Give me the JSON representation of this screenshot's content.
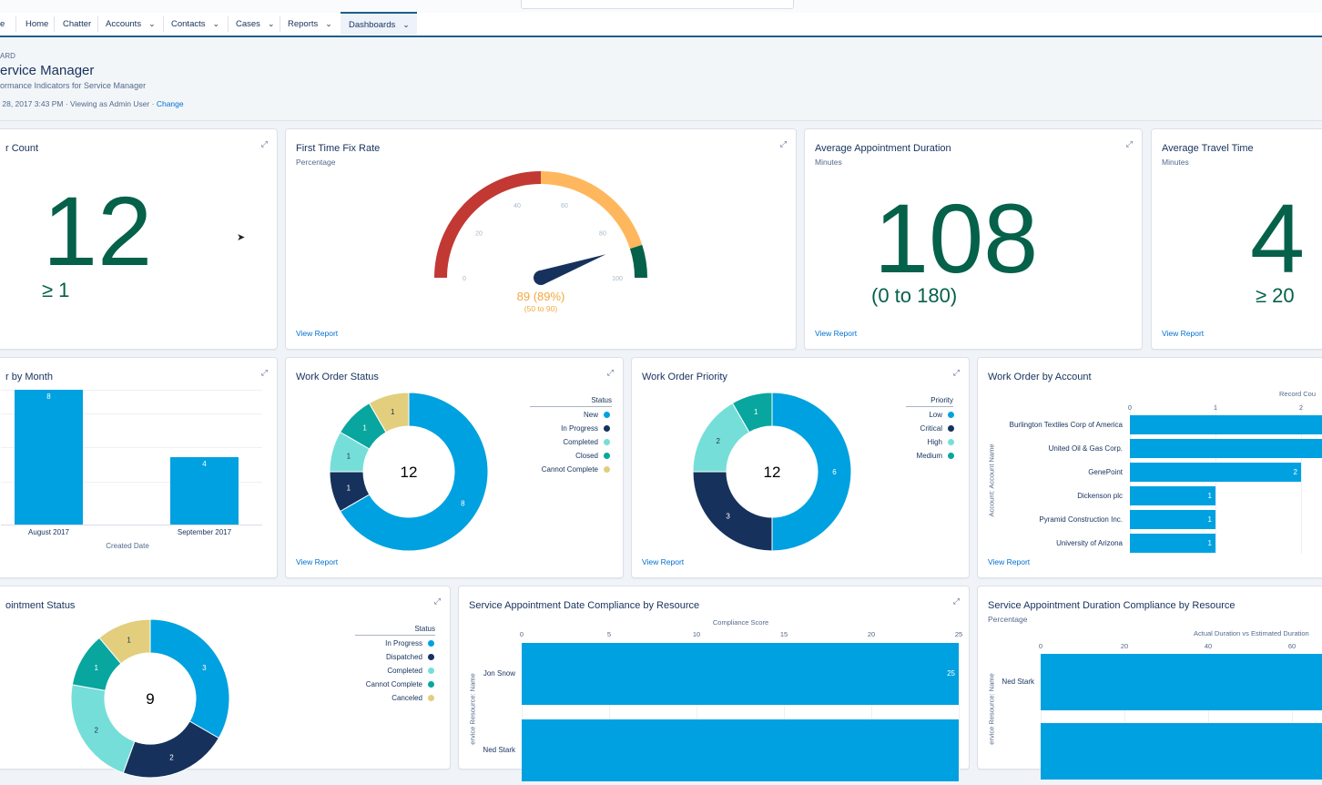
{
  "nav": {
    "tabs": [
      {
        "label": "e",
        "chevron": false,
        "active": false
      },
      {
        "label": "Home",
        "chevron": false,
        "active": false
      },
      {
        "label": "Chatter",
        "chevron": false,
        "active": false
      },
      {
        "label": "Accounts",
        "chevron": true,
        "active": false
      },
      {
        "label": "Contacts",
        "chevron": true,
        "active": false
      },
      {
        "label": "Cases",
        "chevron": true,
        "active": false
      },
      {
        "label": "Reports",
        "chevron": true,
        "active": false
      },
      {
        "label": "Dashboards",
        "chevron": true,
        "active": true
      }
    ]
  },
  "header": {
    "type_label": "ARD",
    "title": "ervice Manager",
    "subtitle": "ormance Indicators for Service Manager",
    "meta_text": " 28, 2017 3:43 PM · Viewing as Admin User · ",
    "change_link": "Change"
  },
  "common": {
    "view_report": "View Report",
    "expand_icon": "expand-icon"
  },
  "cards": {
    "count": {
      "title": "r Count",
      "value": "12",
      "range": "≥ 1"
    },
    "fix_rate": {
      "title": "First Time Fix Rate",
      "subtitle": "Percentage",
      "value_text": "89 (89%)",
      "range_text": "(50 to 90)",
      "value": 89,
      "ticks": [
        "0",
        "20",
        "40",
        "60",
        "80",
        "100"
      ],
      "segments": [
        {
          "from": 0,
          "to": 50,
          "color": "#c23934"
        },
        {
          "from": 50,
          "to": 90,
          "color": "#ffb75d"
        },
        {
          "from": 90,
          "to": 100,
          "color": "#05614a"
        }
      ]
    },
    "duration": {
      "title": "Average Appointment Duration",
      "subtitle": "Minutes",
      "value": "108",
      "range": "(0 to 180)"
    },
    "travel": {
      "title": "Average Travel Time",
      "subtitle": "Minutes",
      "value": "4",
      "range": "≥ 20"
    },
    "by_month": {
      "title": "r by Month",
      "xlabel": "Created Date"
    },
    "wo_status": {
      "title": "Work Order Status",
      "legend_title": "Status",
      "center": "12"
    },
    "wo_priority": {
      "title": "Work Order Priority",
      "legend_title": "Priority",
      "center": "12"
    },
    "wo_account": {
      "title": "Work Order by Account",
      "xlabel": "Record Cou",
      "ylabel": "Account: Account Name"
    },
    "sa_status": {
      "title": "ointment Status",
      "legend_title": "Status",
      "center": "9"
    },
    "sa_date": {
      "title": "Service Appointment Date Compliance by Resource",
      "xlabel": "Compliance Score",
      "ylabel": "ervice Resource: Name"
    },
    "sa_duration": {
      "title": "Service Appointment Duration Compliance by Resource",
      "subtitle": "Percentage",
      "xlabel": "Actual Duration vs Estimated Duration",
      "ylabel": "ervice Resource: Name"
    }
  },
  "chart_data": [
    {
      "type": "bar",
      "chart": "by_month",
      "categories": [
        "August 2017",
        "September 2017"
      ],
      "values": [
        8,
        4
      ],
      "xlabel": "Created Date",
      "ylim": [
        0,
        8
      ]
    },
    {
      "type": "pie",
      "chart": "wo_status",
      "categories": [
        "New",
        "In Progress",
        "Completed",
        "Closed",
        "Cannot Complete"
      ],
      "values": [
        8,
        1,
        1,
        1,
        1
      ],
      "colors": [
        "#00a1e0",
        "#16325c",
        "#76ded9",
        "#08a69e",
        "#e2ce7d"
      ],
      "center": 12
    },
    {
      "type": "pie",
      "chart": "wo_priority",
      "categories": [
        "Low",
        "Critical",
        "High",
        "Medium"
      ],
      "values": [
        6,
        3,
        2,
        1
      ],
      "colors": [
        "#00a1e0",
        "#16325c",
        "#76ded9",
        "#08a69e"
      ],
      "center": 12
    },
    {
      "type": "bar",
      "chart": "wo_account",
      "orientation": "horizontal",
      "categories": [
        "Burlington Textiles Corp of America",
        "United Oil & Gas Corp.",
        "GenePoint",
        "Dickenson plc",
        "Pyramid Construction Inc.",
        "University of Arizona"
      ],
      "values": [
        3,
        3,
        2,
        1,
        1,
        1
      ],
      "labels": [
        "",
        "",
        "2",
        "1",
        "1",
        "1"
      ],
      "ticks": [
        0,
        1,
        2
      ],
      "xlabel": "Record Cou"
    },
    {
      "type": "pie",
      "chart": "sa_status",
      "categories": [
        "In Progress",
        "Dispatched",
        "Completed",
        "Cannot Complete",
        "Canceled"
      ],
      "values": [
        3,
        2,
        2,
        1,
        1
      ],
      "colors": [
        "#00a1e0",
        "#16325c",
        "#76ded9",
        "#08a69e",
        "#e2ce7d"
      ],
      "center": 9
    },
    {
      "type": "bar",
      "chart": "sa_date",
      "orientation": "horizontal",
      "categories": [
        "Jon Snow",
        "Ned Stark"
      ],
      "values": [
        25,
        25
      ],
      "labels": [
        "25",
        ""
      ],
      "ticks": [
        0,
        5,
        10,
        15,
        20,
        25
      ],
      "xlabel": "Compliance Score"
    },
    {
      "type": "bar",
      "chart": "sa_duration",
      "orientation": "horizontal",
      "categories": [
        "Ned Stark",
        ""
      ],
      "values": [
        80,
        80
      ],
      "ticks": [
        0,
        20,
        40,
        60
      ],
      "xlabel": "Actual Duration vs Estimated Duration"
    }
  ]
}
